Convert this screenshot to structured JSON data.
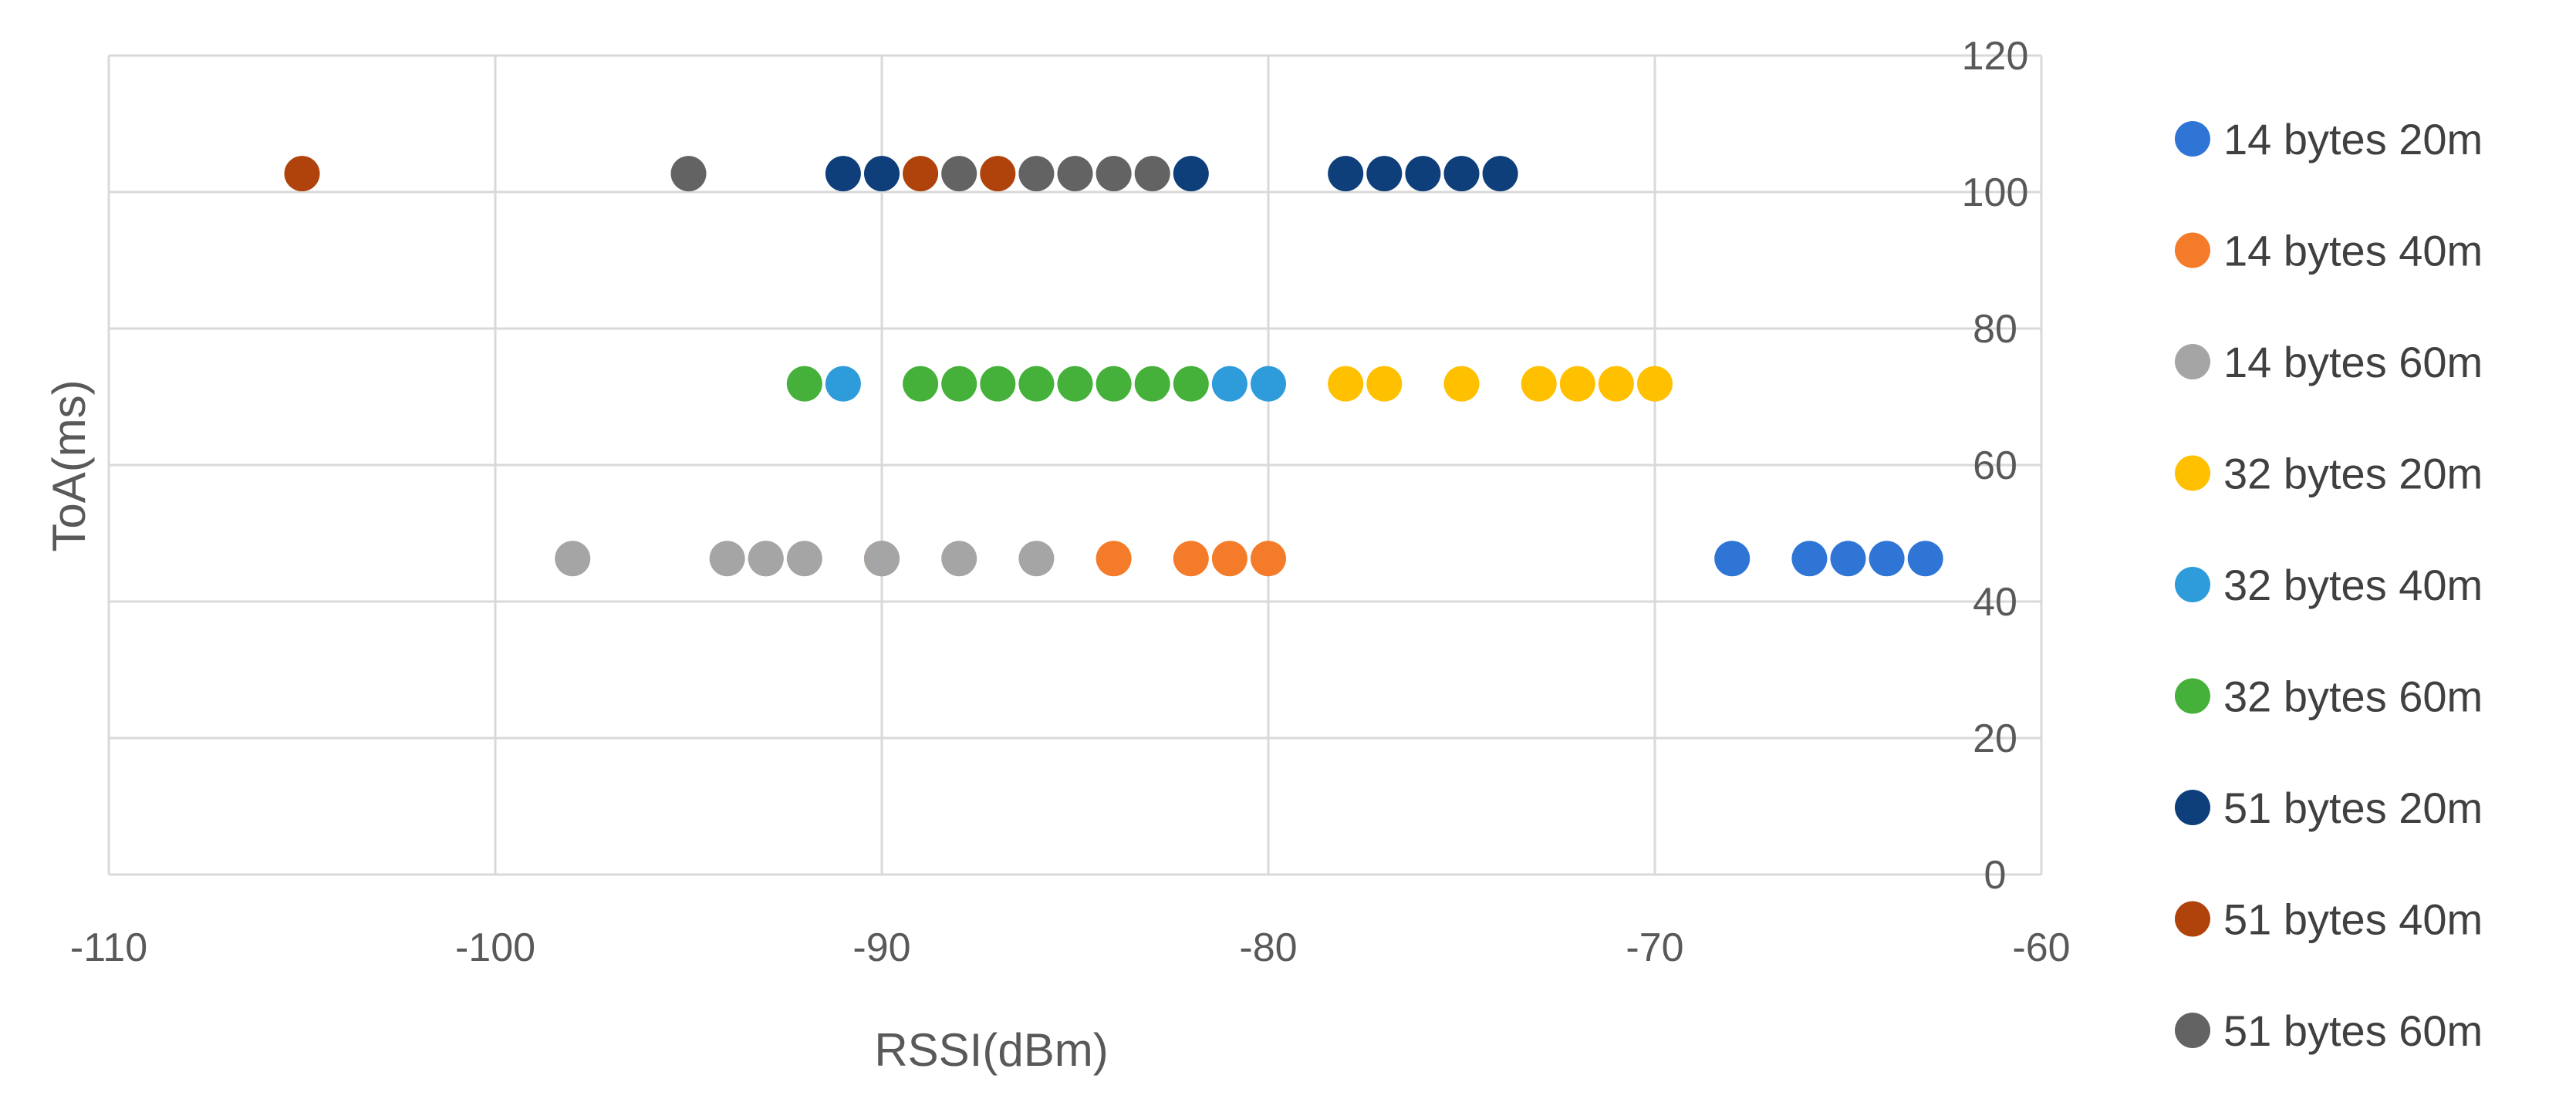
{
  "chart_data": {
    "type": "scatter",
    "title": "",
    "xlabel": "RSSI(dBm)",
    "ylabel": "ToA(ms)",
    "xlim": [
      -110,
      -60
    ],
    "ylim": [
      0,
      120
    ],
    "x_ticks": [
      -110,
      -100,
      -90,
      -80,
      -70,
      -60
    ],
    "y_ticks": [
      0,
      20,
      40,
      60,
      80,
      100,
      120
    ],
    "x_tick_labels": [
      "-110",
      "-100",
      "-90",
      "-80",
      "-70",
      "-60"
    ],
    "y_tick_labels": [
      "0",
      "20",
      "40",
      "60",
      "80",
      "100",
      "120"
    ],
    "grid": true,
    "y_axis_side": "right",
    "legend_position": "right",
    "series": [
      {
        "name": "14 bytes 20m",
        "color": "#2E75D6",
        "points": [
          [
            -68,
            46.3
          ],
          [
            -66,
            46.3
          ],
          [
            -65,
            46.3
          ],
          [
            -64,
            46.3
          ],
          [
            -63,
            46.3
          ]
        ]
      },
      {
        "name": "14 bytes 40m",
        "color": "#F47B2A",
        "points": [
          [
            -93,
            46.3
          ],
          [
            -90,
            46.3
          ],
          [
            -84,
            46.3
          ],
          [
            -82,
            46.3
          ],
          [
            -81,
            46.3
          ],
          [
            -80,
            46.3
          ]
        ]
      },
      {
        "name": "14 bytes 60m",
        "color": "#A5A5A5",
        "points": [
          [
            -98,
            46.3
          ],
          [
            -94,
            46.3
          ],
          [
            -93,
            46.3
          ],
          [
            -92,
            46.3
          ],
          [
            -90,
            46.3
          ],
          [
            -88,
            46.3
          ],
          [
            -86,
            46.3
          ]
        ]
      },
      {
        "name": "32 bytes 20m",
        "color": "#FFC000",
        "points": [
          [
            -78,
            71.9
          ],
          [
            -77,
            71.9
          ],
          [
            -75,
            71.9
          ],
          [
            -73,
            71.9
          ],
          [
            -72,
            71.9
          ],
          [
            -71,
            71.9
          ],
          [
            -70,
            71.9
          ]
        ]
      },
      {
        "name": "32 bytes 40m",
        "color": "#2E9BDA",
        "points": [
          [
            -91,
            71.9
          ],
          [
            -81,
            71.9
          ],
          [
            -80,
            71.9
          ]
        ]
      },
      {
        "name": "32 bytes 60m",
        "color": "#45B03A",
        "points": [
          [
            -92,
            71.9
          ],
          [
            -89,
            71.9
          ],
          [
            -88,
            71.9
          ],
          [
            -87,
            71.9
          ],
          [
            -86,
            71.9
          ],
          [
            -85,
            71.9
          ],
          [
            -84,
            71.9
          ],
          [
            -83,
            71.9
          ],
          [
            -82,
            71.9
          ]
        ]
      },
      {
        "name": "51 bytes 20m",
        "color": "#0E3F7A",
        "points": [
          [
            -91,
            102.7
          ],
          [
            -90,
            102.7
          ],
          [
            -82,
            102.7
          ],
          [
            -78,
            102.7
          ],
          [
            -77,
            102.7
          ],
          [
            -76,
            102.7
          ],
          [
            -75,
            102.7
          ],
          [
            -74,
            102.7
          ]
        ]
      },
      {
        "name": "51 bytes 40m",
        "color": "#B0430B",
        "points": [
          [
            -105,
            102.7
          ],
          [
            -89,
            102.7
          ],
          [
            -87,
            102.7
          ]
        ]
      },
      {
        "name": "51 bytes 60m",
        "color": "#636363",
        "points": [
          [
            -95,
            102.7
          ],
          [
            -88,
            102.7
          ],
          [
            -86,
            102.7
          ],
          [
            -85,
            102.7
          ],
          [
            -84,
            102.7
          ],
          [
            -83,
            102.7
          ]
        ]
      }
    ]
  }
}
